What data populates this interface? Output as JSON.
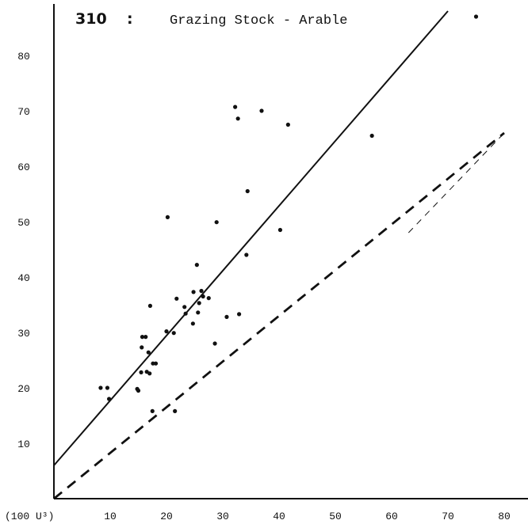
{
  "chart_data": {
    "type": "scatter",
    "title_number": "310",
    "title_separator": ":",
    "title": "Grazing Stock - Arable",
    "xlabel": "",
    "ylabel": "",
    "x_unit_label": "(100 U³)",
    "xlim": [
      0,
      80
    ],
    "ylim": [
      0,
      88
    ],
    "x_ticks": [
      10,
      20,
      30,
      40,
      50,
      60,
      70,
      80
    ],
    "y_ticks": [
      10,
      20,
      30,
      40,
      50,
      60,
      70,
      80
    ],
    "grid": false,
    "points": [
      [
        8.3,
        20
      ],
      [
        9.5,
        20
      ],
      [
        9.8,
        18
      ],
      [
        14.8,
        19.8
      ],
      [
        15,
        19.5
      ],
      [
        15.5,
        22.8
      ],
      [
        15.6,
        27.3
      ],
      [
        15.7,
        29.2
      ],
      [
        16.3,
        29.2
      ],
      [
        16.5,
        22.9
      ],
      [
        16.8,
        26.4
      ],
      [
        17,
        22.6
      ],
      [
        17.1,
        34.8
      ],
      [
        17.5,
        15.8
      ],
      [
        17.6,
        24.4
      ],
      [
        18.1,
        24.4
      ],
      [
        20,
        30.2
      ],
      [
        20.2,
        50.8
      ],
      [
        21.3,
        29.9
      ],
      [
        21.5,
        15.8
      ],
      [
        21.8,
        36.1
      ],
      [
        23.2,
        34.6
      ],
      [
        23.4,
        33.4
      ],
      [
        24.7,
        31.6
      ],
      [
        24.8,
        37.3
      ],
      [
        25.4,
        42.2
      ],
      [
        25.6,
        33.6
      ],
      [
        25.8,
        35.3
      ],
      [
        26.2,
        37.5
      ],
      [
        26.5,
        36.5
      ],
      [
        27.5,
        36.2
      ],
      [
        28.6,
        28
      ],
      [
        28.9,
        49.9
      ],
      [
        30.7,
        32.8
      ],
      [
        32.2,
        70.7
      ],
      [
        32.7,
        68.6
      ],
      [
        32.9,
        33.3
      ],
      [
        34.2,
        44
      ],
      [
        34.4,
        55.5
      ],
      [
        36.9,
        70
      ],
      [
        40.2,
        48.5
      ],
      [
        41.6,
        67.5
      ],
      [
        56.5,
        65.5
      ],
      [
        75,
        87
      ]
    ],
    "lines": [
      {
        "style": "solid",
        "x": [
          0,
          70
        ],
        "y": [
          6,
          88
        ]
      },
      {
        "style": "dashed",
        "x": [
          0,
          80
        ],
        "y": [
          0,
          66
        ]
      },
      {
        "style": "thin-dashed",
        "x": [
          63,
          80
        ],
        "y": [
          48,
          66
        ]
      }
    ]
  }
}
